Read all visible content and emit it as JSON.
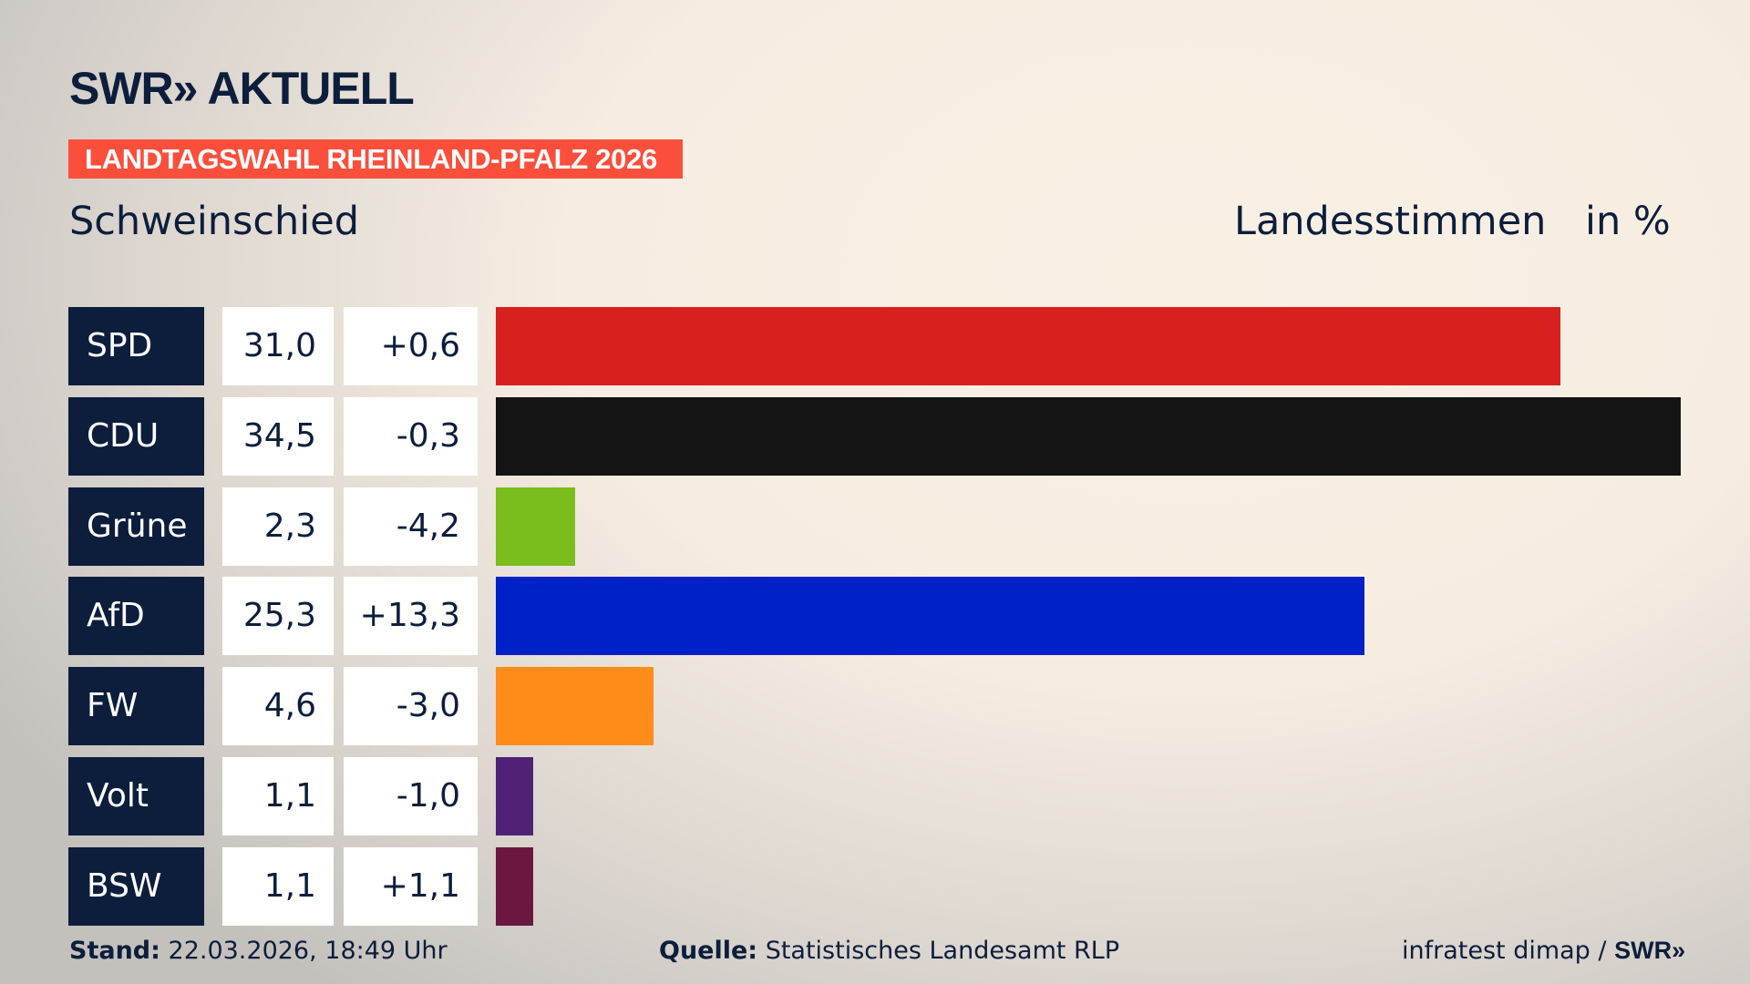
{
  "header": {
    "logo": "SWR» AKTUELL",
    "banner": "LANDTAGSWAHL RHEINLAND-PFALZ 2026",
    "place": "Schweinschied",
    "metric": "Landesstimmen",
    "unit": "in %"
  },
  "chart_data": {
    "type": "bar",
    "orientation": "horizontal",
    "categories": [
      "SPD",
      "CDU",
      "Grüne",
      "AfD",
      "FW",
      "Volt",
      "BSW"
    ],
    "values": [
      31.0,
      34.5,
      2.3,
      25.3,
      4.6,
      1.1,
      1.1
    ],
    "value_labels": [
      "31,0",
      "34,5",
      "2,3",
      "25,3",
      "4,6",
      "1,1",
      "1,1"
    ],
    "diff_labels": [
      "+0,6",
      "-0,3",
      "-4,2",
      "+13,3",
      "-3,0",
      "-1,0",
      "+1,1"
    ],
    "colors": [
      "#d82020",
      "#141414",
      "#7bbd1d",
      "#0021c8",
      "#ff8c18",
      "#4f2277",
      "#6b1840"
    ],
    "xlim": [
      0,
      34.5
    ]
  },
  "footer": {
    "stand_label": "Stand:",
    "stand_value": "22.03.2026, 18:49 Uhr",
    "source_label": "Quelle:",
    "source_value": "Statistisches Landesamt RLP",
    "credit": "infratest dimap / ",
    "credit_logo": "SWR»"
  }
}
